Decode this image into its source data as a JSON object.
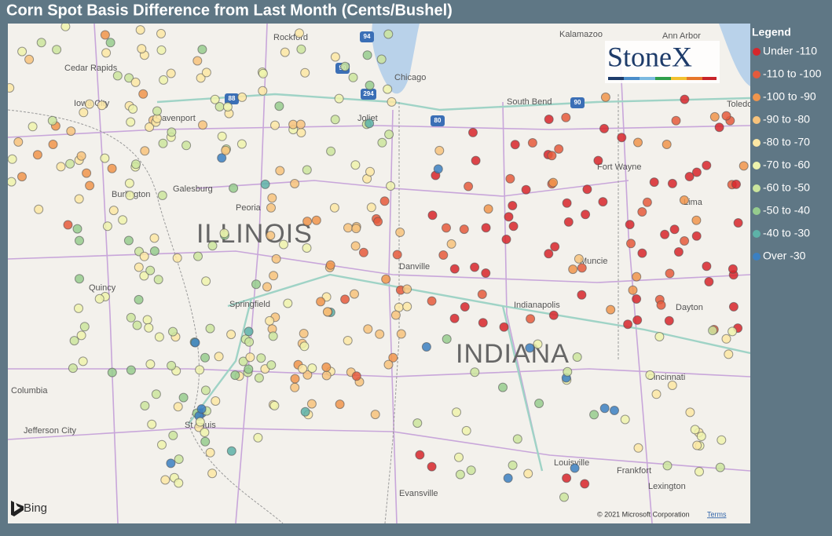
{
  "header": {
    "title": "Corn Spot Basis Difference from Last Month (Cents/Bushel)"
  },
  "legend": {
    "title": "Legend",
    "items": [
      {
        "label": "Under -110",
        "color": "#d7262b"
      },
      {
        "label": "-110 to -100",
        "color": "#e55a3c"
      },
      {
        "label": "-100 to -90",
        "color": "#f0954c"
      },
      {
        "label": "-90 to -80",
        "color": "#f7c37c"
      },
      {
        "label": "-80 to -70",
        "color": "#fbe7a4"
      },
      {
        "label": "-70 to -60",
        "color": "#eef3ad"
      },
      {
        "label": "-60 to -50",
        "color": "#cbe59d"
      },
      {
        "label": "-50 to -40",
        "color": "#96cc8e"
      },
      {
        "label": "-40 to -30",
        "color": "#5db2a8"
      },
      {
        "label": "Over -30",
        "color": "#3b80c2"
      }
    ]
  },
  "map": {
    "labels": [
      "Rockford",
      "Kalamazoo",
      "Ann Arbor",
      "Cedar Rapids",
      "Chicago",
      "Iowa City",
      "South Bend",
      "Toledo",
      "Davenport",
      "Joliet",
      "Fort Wayne",
      "Burlington",
      "Galesburg",
      "Peoria",
      "Lima",
      "Danville",
      "Muncie",
      "Quincy",
      "Springfield",
      "Indianapolis",
      "Dayton",
      "Cincinnati",
      "Columbia",
      "Jefferson City",
      "St Louis",
      "Louisville",
      "Frankfort",
      "Lexington",
      "Evansville"
    ],
    "states": [
      "ILLINOIS",
      "INDIANA"
    ],
    "shields": [
      "94",
      "90",
      "294",
      "88",
      "80",
      "90"
    ],
    "logo": "StoneX",
    "provider": "Bing",
    "copyright": "© 2021 Microsoft Corporation",
    "terms": "Terms"
  }
}
